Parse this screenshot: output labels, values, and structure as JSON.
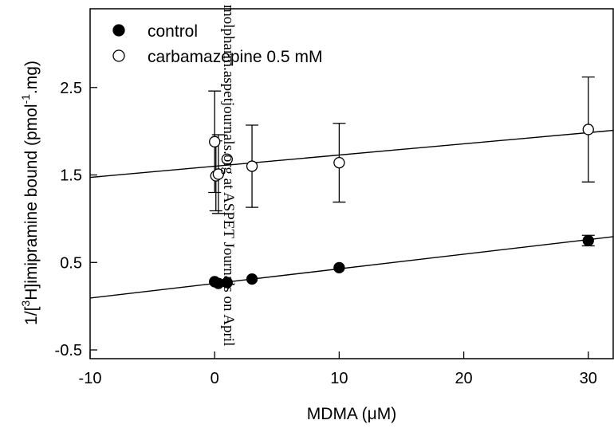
{
  "chart_data": {
    "type": "scatter",
    "xlabel": "MDMA (μM)",
    "ylabel_main": "1/[",
    "ylabel_sup1": "3",
    "ylabel_mid": "H]imipramine bound (pmol",
    "ylabel_sup2": "-1",
    "ylabel_end": ".mg)",
    "xlim": [
      -10,
      32
    ],
    "ylim": [
      -0.6,
      3.4
    ],
    "xticks": [
      -10,
      0,
      10,
      20,
      30
    ],
    "xtick_labels": [
      "-10",
      "0",
      "10",
      "20",
      "30"
    ],
    "yticks": [
      -0.5,
      0.5,
      1.5,
      2.5
    ],
    "ytick_labels": [
      "-0.5",
      "0.5",
      "1.5",
      "2.5"
    ],
    "grid": false,
    "legend_position": "top-left",
    "series": [
      {
        "name": "control",
        "marker": "filled-circle",
        "points": [
          {
            "x": 0,
            "y": 0.28,
            "err": 0
          },
          {
            "x": 0.3,
            "y": 0.26,
            "err": 0
          },
          {
            "x": 1,
            "y": 0.27,
            "err": 0
          },
          {
            "x": 3,
            "y": 0.31,
            "err": 0
          },
          {
            "x": 10,
            "y": 0.44,
            "err": 0
          },
          {
            "x": 30,
            "y": 0.75,
            "err": 0.06
          }
        ],
        "fit": {
          "slope": 0.0167,
          "intercept": 0.26
        }
      },
      {
        "name": "carbamazepine 0.5 mM",
        "marker": "open-circle",
        "points": [
          {
            "x": 0,
            "y": 1.88,
            "err": 0.58
          },
          {
            "x": 0.1,
            "y": 1.49,
            "err": 0.4
          },
          {
            "x": 0.3,
            "y": 1.51,
            "err": 0.45
          },
          {
            "x": 1,
            "y": 1.68,
            "err": 0
          },
          {
            "x": 3,
            "y": 1.6,
            "err": 0.47
          },
          {
            "x": 10,
            "y": 1.64,
            "err": 0.45
          },
          {
            "x": 30,
            "y": 2.02,
            "err": 0.6
          }
        ],
        "fit": {
          "slope": 0.0128,
          "intercept": 1.6
        }
      }
    ]
  },
  "watermark": {
    "text": "molpharm.aspetjournals.org at ASPET Journals on April"
  }
}
